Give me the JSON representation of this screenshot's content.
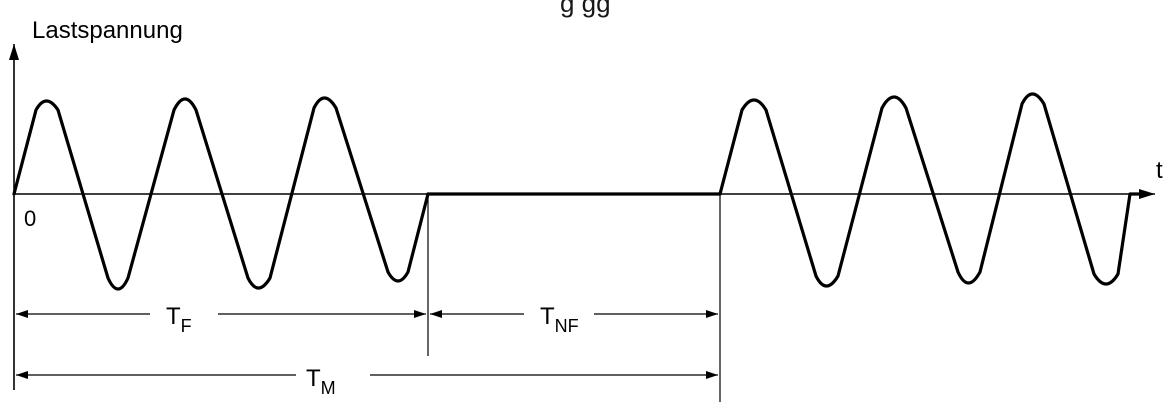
{
  "diagram": {
    "y_axis_label": "Lastspannung",
    "x_axis_label": "t",
    "origin_label": "0",
    "header_fragment": "...g... ...gg...",
    "dimensions": {
      "tf": {
        "main": "T",
        "sub": "F"
      },
      "tnf": {
        "main": "T",
        "sub": "NF"
      },
      "tm": {
        "main": "T",
        "sub": "M"
      }
    }
  }
}
